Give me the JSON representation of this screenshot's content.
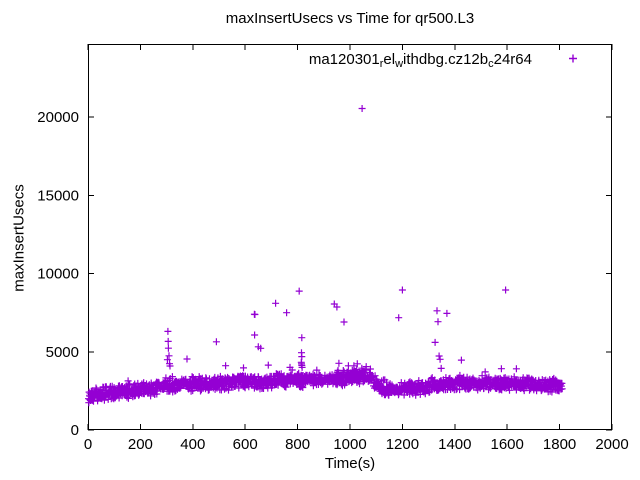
{
  "window": {
    "background": "#ffffff",
    "text_color": "#000000"
  },
  "chart_data": {
    "type": "scatter",
    "title": "maxInsertUsecs vs Time for qr500.L3",
    "xlabel": "Time(s)",
    "ylabel": "maxInsertUsecs",
    "xlim": [
      0,
      2000
    ],
    "ylim": [
      0,
      24670
    ],
    "xticks": [
      0,
      200,
      400,
      600,
      800,
      1000,
      1200,
      1400,
      1600,
      1800,
      2000
    ],
    "yticks": [
      0,
      5000,
      10000,
      15000,
      20000
    ],
    "grid": false,
    "border": true,
    "tick_style": "inward-mirrored",
    "legend": {
      "position": "top-right-inside",
      "marker": "plus",
      "label_plain": "ma120301_rel_withdbg.cz12b_c24r64",
      "label_parts": [
        {
          "text": "ma120301"
        },
        {
          "text": "r",
          "sub": true
        },
        {
          "text": "el"
        },
        {
          "text": "w",
          "sub": true
        },
        {
          "text": "ithdbg.cz12b"
        },
        {
          "text": "c",
          "sub": true
        },
        {
          "text": "24r64"
        }
      ]
    },
    "series": [
      {
        "name": "ma120301_rel_withdbg.cz12b_c24r64",
        "color": "#9400D3",
        "marker": "plus",
        "marker_size": 7,
        "max_point": [
          1046,
          20550
        ],
        "outliers": [
          [
            303,
            4490
          ],
          [
            305,
            6300
          ],
          [
            306,
            5660
          ],
          [
            307,
            5230
          ],
          [
            309,
            4740
          ],
          [
            311,
            4240
          ],
          [
            313,
            4090
          ],
          [
            378,
            4540
          ],
          [
            490,
            5640
          ],
          [
            525,
            4110
          ],
          [
            635,
            7400
          ],
          [
            637,
            7380
          ],
          [
            636,
            6070
          ],
          [
            650,
            5320
          ],
          [
            659,
            5220
          ],
          [
            688,
            4150
          ],
          [
            716,
            8100
          ],
          [
            758,
            7500
          ],
          [
            771,
            4000
          ],
          [
            806,
            8880
          ],
          [
            816,
            5900
          ],
          [
            815,
            4940
          ],
          [
            816,
            4690
          ],
          [
            814,
            4330
          ],
          [
            815,
            4230
          ],
          [
            816,
            4130
          ],
          [
            817,
            4000
          ],
          [
            940,
            8050
          ],
          [
            950,
            7860
          ],
          [
            977,
            6900
          ],
          [
            994,
            4100
          ],
          [
            1015,
            4100
          ],
          [
            1028,
            4230
          ],
          [
            1045,
            3950
          ],
          [
            1062,
            4050
          ],
          [
            1078,
            3900
          ],
          [
            1046,
            20550
          ],
          [
            1186,
            7180
          ],
          [
            1200,
            8950
          ],
          [
            1325,
            5600
          ],
          [
            1332,
            7620
          ],
          [
            1336,
            6920
          ],
          [
            1340,
            4730
          ],
          [
            1344,
            4520
          ],
          [
            1348,
            3940
          ],
          [
            1370,
            7450
          ],
          [
            1425,
            4470
          ],
          [
            1578,
            3920
          ],
          [
            1594,
            8950
          ],
          [
            1635,
            3910
          ]
        ],
        "band": {
          "description": "dense baseline band of samples every ~1.2s",
          "seed": 13,
          "count": 1520,
          "x_start": 2,
          "x_end": 1810,
          "spread": 520,
          "min_value": 1700,
          "bump_probability": 0.05,
          "bump_max": 520,
          "center_profile": [
            [
              0,
              2150
            ],
            [
              60,
              2330
            ],
            [
              130,
              2450
            ],
            [
              200,
              2560
            ],
            [
              270,
              2700
            ],
            [
              310,
              2820
            ],
            [
              400,
              2920
            ],
            [
              500,
              3000
            ],
            [
              600,
              3060
            ],
            [
              700,
              3120
            ],
            [
              800,
              3180
            ],
            [
              900,
              3240
            ],
            [
              1000,
              3320
            ],
            [
              1030,
              3420
            ],
            [
              1085,
              3420
            ],
            [
              1105,
              2800
            ],
            [
              1130,
              2600
            ],
            [
              1210,
              2650
            ],
            [
              1290,
              2750
            ],
            [
              1360,
              2900
            ],
            [
              1430,
              3000
            ],
            [
              1520,
              3000
            ],
            [
              1620,
              2950
            ],
            [
              1720,
              2880
            ],
            [
              1810,
              2820
            ]
          ]
        }
      }
    ]
  }
}
